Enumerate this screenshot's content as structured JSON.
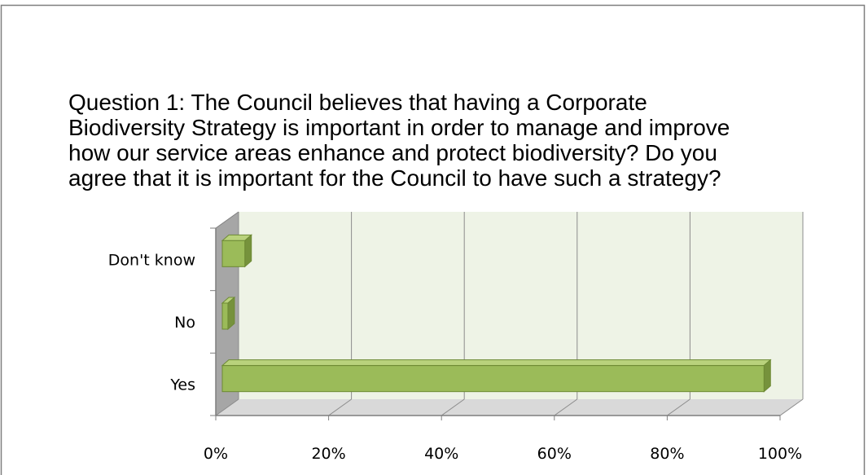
{
  "chart_data": {
    "type": "bar",
    "orientation": "horizontal",
    "style": "3d",
    "title": "Question 1: The Council believes that having a Corporate Biodiversity Strategy is important in order to manage and improve how our service areas enhance and protect biodiversity? Do you agree that it is important for the Council to have such a strategy?",
    "categories": [
      "Yes",
      "No",
      "Don't know"
    ],
    "values": [
      96,
      1,
      4
    ],
    "xlim": [
      0,
      100
    ],
    "x_ticks": [
      "0%",
      "20%",
      "40%",
      "60%",
      "80%",
      "100%"
    ],
    "grid": true,
    "legend": "none",
    "colors": {
      "bar_front": "#9bbb59",
      "bar_top": "#b9d27c",
      "bar_side": "#76923c",
      "bar_edge": "#6d8a34",
      "plot_back": "#eef3e6",
      "plot_wall": "#a6a6a6",
      "plot_floor": "#d9d9d9",
      "grid": "#8c8c8c"
    }
  }
}
